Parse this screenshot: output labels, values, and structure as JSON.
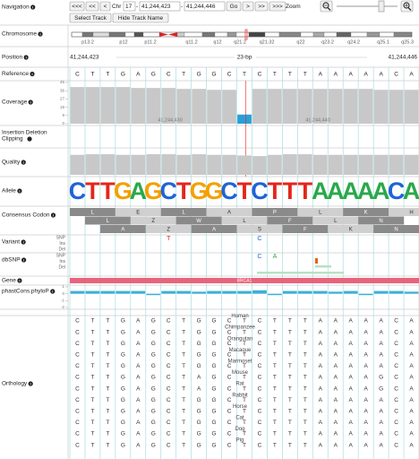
{
  "navigation": {
    "label": "Navigation",
    "buttons_left": [
      "<<<",
      "<<",
      "<"
    ],
    "chr_label": "Chr",
    "chr": "17",
    "separator": "-",
    "start": "41,244,423",
    "end": "41,244,446",
    "go": "Go",
    "buttons_right": [
      ">",
      ">>",
      ">>>"
    ],
    "zoom": "Zoom",
    "select_track": "Select Track",
    "hide_track_name": "Hide Track Name"
  },
  "tracks": {
    "chromosome": {
      "label": "Chromosome",
      "bands": [
        "p13.2",
        "p12",
        "p11.2",
        "q11.2",
        "q12",
        "q21.2",
        "q21.32",
        "q22",
        "q23.2",
        "q24.2",
        "q25.1",
        "q25.3"
      ]
    },
    "position": {
      "label": "Position",
      "start": "41,244,423",
      "span": "23-bp",
      "end": "41,244,446"
    },
    "reference": {
      "label": "Reference",
      "bases": "CTTGAGCTGGCTCTTTAAAAACA"
    },
    "coverage": {
      "label": "Coverage",
      "ylim": [
        0,
        45
      ],
      "yticks": [
        0,
        9,
        18,
        27,
        36,
        45
      ],
      "values": [
        40,
        40,
        40,
        40,
        39,
        39,
        39,
        38,
        38,
        37,
        37,
        10,
        38,
        38,
        38,
        38,
        38,
        38,
        38,
        38,
        37,
        37,
        37
      ],
      "color": "#c8c8c8",
      "highlight_color": "#2a9fd6",
      "highlight_below": 20,
      "marker_labels": [
        "41,244,430",
        "41,244,440"
      ]
    },
    "indel": {
      "label_lines": [
        "Insertion Deletion",
        "Clipping"
      ]
    },
    "quality": {
      "label": "Quality",
      "ylim": [
        0,
        40
      ],
      "values": [
        33,
        34,
        34,
        33,
        33,
        34,
        34,
        33,
        34,
        33,
        33,
        32,
        31,
        33,
        34,
        34,
        33,
        33,
        33,
        33,
        33,
        33,
        33
      ],
      "color": "#c8c8c8"
    },
    "allele": {
      "label": "Allele",
      "bases": [
        "C",
        "T",
        "T",
        "G",
        "A",
        "G",
        "C",
        "T",
        "G",
        "G",
        "C",
        "T",
        "C",
        "T",
        "T",
        "T",
        "A",
        "A",
        "A",
        "A",
        "A",
        "C",
        "A"
      ],
      "base_colors": {
        "A": "#2aa84a",
        "C": "#1f63d6",
        "G": "#f2a100",
        "T": "#e3261c"
      }
    },
    "codon": {
      "label": "Consensus Codon",
      "frames": [
        [
          "L",
          "E",
          "L",
          "A",
          "P",
          "L",
          "K",
          "H"
        ],
        [
          "L",
          "Z",
          "W",
          "L",
          "F",
          "L",
          "N"
        ],
        [
          "A",
          "Z",
          "A",
          "S",
          "F",
          "K",
          "N"
        ]
      ]
    },
    "variant": {
      "label": "Variant",
      "rows": [
        "SNP",
        "Ins",
        "Del"
      ],
      "bases": [
        null,
        null,
        null,
        null,
        null,
        null,
        "T",
        null,
        null,
        null,
        null,
        null,
        "C",
        null,
        null,
        null,
        null,
        null,
        null,
        null,
        null,
        null,
        null
      ]
    },
    "dbsnp": {
      "label": "dbSNP",
      "rows": [
        "SNP",
        "Ins",
        "Del"
      ],
      "bases": [
        null,
        null,
        null,
        null,
        null,
        null,
        null,
        null,
        null,
        null,
        null,
        null,
        "C",
        "A",
        null,
        null,
        null,
        null,
        null,
        null,
        null,
        null,
        null
      ]
    },
    "gene": {
      "label": "Gene",
      "name": "BRCA1",
      "color": "#e8647c"
    },
    "phylop": {
      "label": "phastCons.phyloP",
      "ylim": [
        -2,
        1
      ],
      "yticks": [
        1,
        0,
        -1,
        -2
      ],
      "values": [
        0.4,
        0.4,
        0.4,
        0.4,
        0.4,
        -0.2,
        0.4,
        0.4,
        0.3,
        0.4,
        0.4,
        0.4,
        0.5,
        -0.2,
        0.4,
        0.4,
        0.4,
        0.3,
        0.4,
        -0.2,
        0.4,
        0.4,
        0.3
      ],
      "color": "#3bb0d6"
    },
    "orthology": {
      "label": "Orthology",
      "species": [
        "Human",
        "Chimpanzee",
        "Orangutan",
        "Macaque",
        "Marmoset",
        "Mouse",
        "Rat",
        "Rabbit",
        "Horse",
        "Cat",
        "Dog",
        "Pig"
      ],
      "sequences": [
        "CTTGAGCTGGCTCTTTAAAAACA",
        "CTTGAGCTGGCTCTTTAAAAACA",
        "CTTGAGCTGGCTCTTTAAAAACA",
        "CTTGAGCTGGCTCTTTAAAAACA",
        "CTTGAGCTGGCTCTTTAAAAACA",
        "CTTGAGCTAGCTCTTTAAAAGCA",
        "CTTGAGCTAGCTCTTTAAAAGCA",
        "CTTGAGCTGGCTCTTTAAAAACA",
        "CTTGAGCTGGCTCTTTAAAAACA",
        "CTTGAGCTGGCTCTTTAAAAACA",
        "CTTGAGCTGGCTCTTTAAAAACA",
        "CTTGAGCTGGCTCTTTAAAAACA"
      ]
    }
  }
}
